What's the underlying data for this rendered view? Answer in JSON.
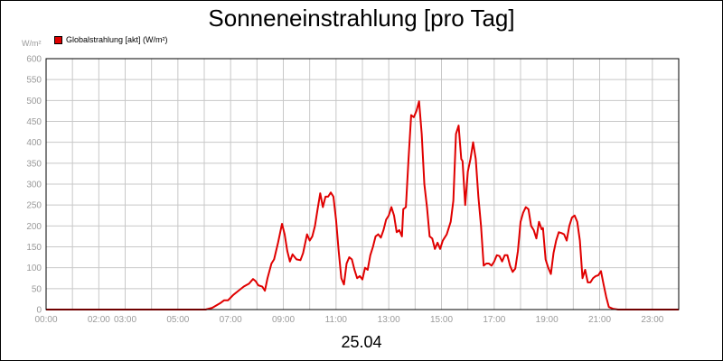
{
  "title": "Sonneneinstrahlung [pro Tag]",
  "unit_label": "W/m²",
  "date_label": "25.04",
  "colors": {
    "series": "#e00000",
    "grid": "#c8c8c8",
    "ticks": "#9a9a9a"
  },
  "chart_data": {
    "type": "line",
    "title": "Sonneneinstrahlung [pro Tag]",
    "xlabel": "25.04",
    "ylabel": "W/m²",
    "ylim": [
      0,
      600
    ],
    "xlim_hours": [
      0,
      24
    ],
    "grid": true,
    "legend_placement": "top-left",
    "y_ticks": [
      "0",
      "50",
      "100",
      "150",
      "200",
      "250",
      "300",
      "350",
      "400",
      "450",
      "500",
      "550",
      "600"
    ],
    "x_ticks": [
      {
        "h": 0,
        "label": "00:00"
      },
      {
        "h": 2,
        "label": "02:00"
      },
      {
        "h": 3,
        "label": "03:00"
      },
      {
        "h": 5,
        "label": "05:00"
      },
      {
        "h": 7,
        "label": "07:00"
      },
      {
        "h": 9,
        "label": "09:00"
      },
      {
        "h": 11,
        "label": "11:00"
      },
      {
        "h": 13,
        "label": "13:00"
      },
      {
        "h": 15,
        "label": "15:00"
      },
      {
        "h": 17,
        "label": "17:00"
      },
      {
        "h": 19,
        "label": "19:00"
      },
      {
        "h": 21,
        "label": "21:00"
      },
      {
        "h": 23,
        "label": "23:00"
      }
    ],
    "series": [
      {
        "name": "Globalstrahlung [akt] (W/m²)",
        "color": "#e00000",
        "points": [
          [
            0.0,
            0
          ],
          [
            6.05,
            0
          ],
          [
            6.3,
            4
          ],
          [
            6.6,
            15
          ],
          [
            6.75,
            22
          ],
          [
            6.9,
            22
          ],
          [
            7.1,
            35
          ],
          [
            7.3,
            45
          ],
          [
            7.5,
            55
          ],
          [
            7.7,
            62
          ],
          [
            7.85,
            73
          ],
          [
            7.95,
            68
          ],
          [
            8.05,
            58
          ],
          [
            8.2,
            55
          ],
          [
            8.3,
            45
          ],
          [
            8.4,
            75
          ],
          [
            8.55,
            110
          ],
          [
            8.65,
            120
          ],
          [
            8.8,
            160
          ],
          [
            8.95,
            205
          ],
          [
            9.05,
            180
          ],
          [
            9.15,
            140
          ],
          [
            9.25,
            115
          ],
          [
            9.35,
            132
          ],
          [
            9.5,
            120
          ],
          [
            9.65,
            118
          ],
          [
            9.75,
            135
          ],
          [
            9.9,
            180
          ],
          [
            10.0,
            165
          ],
          [
            10.1,
            175
          ],
          [
            10.2,
            200
          ],
          [
            10.3,
            240
          ],
          [
            10.4,
            278
          ],
          [
            10.5,
            245
          ],
          [
            10.6,
            270
          ],
          [
            10.7,
            270
          ],
          [
            10.8,
            280
          ],
          [
            10.9,
            270
          ],
          [
            11.0,
            215
          ],
          [
            11.1,
            140
          ],
          [
            11.2,
            75
          ],
          [
            11.3,
            60
          ],
          [
            11.4,
            110
          ],
          [
            11.5,
            125
          ],
          [
            11.6,
            120
          ],
          [
            11.7,
            95
          ],
          [
            11.8,
            75
          ],
          [
            11.9,
            80
          ],
          [
            12.0,
            72
          ],
          [
            12.1,
            100
          ],
          [
            12.2,
            95
          ],
          [
            12.3,
            130
          ],
          [
            12.4,
            150
          ],
          [
            12.5,
            175
          ],
          [
            12.6,
            180
          ],
          [
            12.7,
            172
          ],
          [
            12.8,
            190
          ],
          [
            12.9,
            215
          ],
          [
            13.0,
            225
          ],
          [
            13.1,
            245
          ],
          [
            13.2,
            225
          ],
          [
            13.3,
            185
          ],
          [
            13.4,
            190
          ],
          [
            13.5,
            175
          ],
          [
            13.55,
            240
          ],
          [
            13.65,
            245
          ],
          [
            13.75,
            360
          ],
          [
            13.85,
            465
          ],
          [
            13.95,
            460
          ],
          [
            14.05,
            475
          ],
          [
            14.15,
            498
          ],
          [
            14.25,
            420
          ],
          [
            14.35,
            300
          ],
          [
            14.45,
            245
          ],
          [
            14.55,
            175
          ],
          [
            14.65,
            170
          ],
          [
            14.75,
            145
          ],
          [
            14.85,
            160
          ],
          [
            14.95,
            145
          ],
          [
            15.05,
            165
          ],
          [
            15.2,
            180
          ],
          [
            15.35,
            210
          ],
          [
            15.45,
            260
          ],
          [
            15.55,
            420
          ],
          [
            15.65,
            440
          ],
          [
            15.75,
            360
          ],
          [
            15.8,
            355
          ],
          [
            15.9,
            250
          ],
          [
            16.0,
            330
          ],
          [
            16.1,
            360
          ],
          [
            16.2,
            400
          ],
          [
            16.3,
            360
          ],
          [
            16.4,
            270
          ],
          [
            16.5,
            200
          ],
          [
            16.6,
            105
          ],
          [
            16.7,
            110
          ],
          [
            16.8,
            110
          ],
          [
            16.9,
            105
          ],
          [
            17.0,
            115
          ],
          [
            17.1,
            130
          ],
          [
            17.2,
            128
          ],
          [
            17.3,
            115
          ],
          [
            17.4,
            130
          ],
          [
            17.5,
            130
          ],
          [
            17.6,
            105
          ],
          [
            17.7,
            90
          ],
          [
            17.8,
            98
          ],
          [
            17.9,
            140
          ],
          [
            18.0,
            210
          ],
          [
            18.1,
            232
          ],
          [
            18.2,
            245
          ],
          [
            18.3,
            240
          ],
          [
            18.4,
            200
          ],
          [
            18.5,
            190
          ],
          [
            18.6,
            170
          ],
          [
            18.7,
            210
          ],
          [
            18.8,
            192
          ],
          [
            18.85,
            195
          ],
          [
            18.95,
            120
          ],
          [
            19.05,
            100
          ],
          [
            19.15,
            85
          ],
          [
            19.25,
            135
          ],
          [
            19.35,
            165
          ],
          [
            19.45,
            185
          ],
          [
            19.55,
            183
          ],
          [
            19.65,
            180
          ],
          [
            19.75,
            165
          ],
          [
            19.85,
            200
          ],
          [
            19.95,
            220
          ],
          [
            20.05,
            225
          ],
          [
            20.15,
            210
          ],
          [
            20.25,
            165
          ],
          [
            20.35,
            75
          ],
          [
            20.45,
            95
          ],
          [
            20.55,
            65
          ],
          [
            20.65,
            65
          ],
          [
            20.75,
            75
          ],
          [
            20.85,
            80
          ],
          [
            20.95,
            82
          ],
          [
            21.05,
            92
          ],
          [
            21.15,
            60
          ],
          [
            21.25,
            30
          ],
          [
            21.35,
            6
          ],
          [
            21.5,
            2
          ],
          [
            21.7,
            0
          ],
          [
            24.0,
            0
          ]
        ]
      }
    ]
  }
}
